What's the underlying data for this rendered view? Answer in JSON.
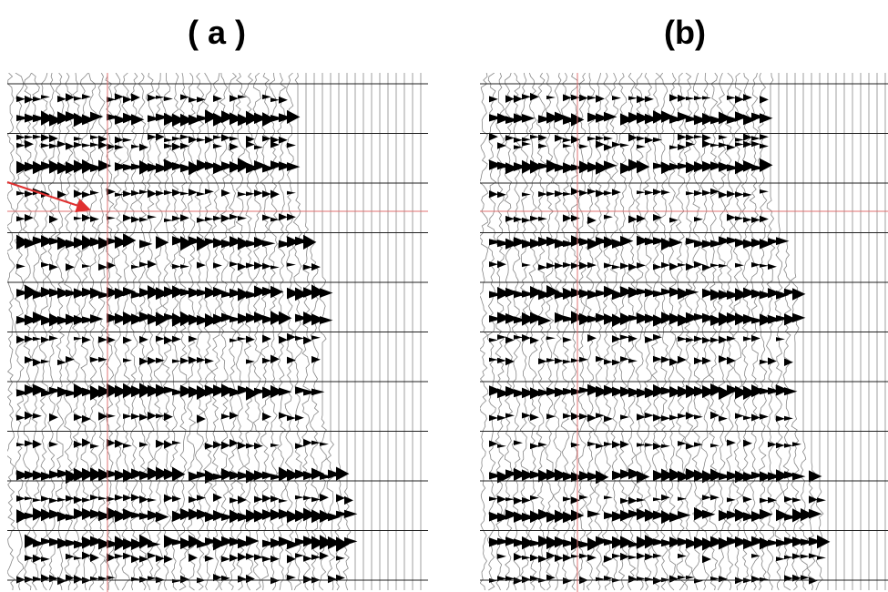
{
  "panels": [
    {
      "title": "( a )"
    },
    {
      "title": "(b)"
    }
  ]
}
